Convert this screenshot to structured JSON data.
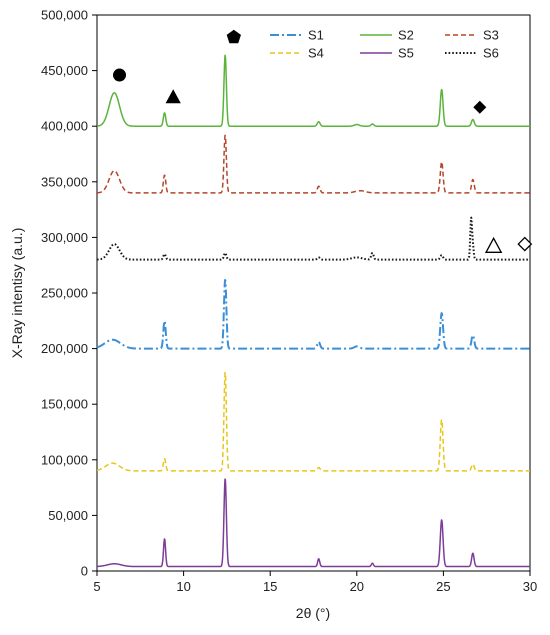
{
  "chart_data": {
    "type": "line",
    "title": "",
    "xlabel": "2θ (°)",
    "ylabel": "X-Ray intentisy (a.u.)",
    "xlim": [
      5,
      30
    ],
    "ylim": [
      0,
      500000
    ],
    "x_ticks": [
      5,
      10,
      15,
      20,
      25,
      30
    ],
    "y_ticks": [
      0,
      50000,
      100000,
      150000,
      200000,
      250000,
      300000,
      350000,
      400000,
      450000,
      500000
    ],
    "x_tick_labels": [
      "5",
      "10",
      "15",
      "20",
      "25",
      "30"
    ],
    "y_tick_labels": [
      "0",
      "50,000",
      "100,000",
      "150,000",
      "200,000",
      "250,000",
      "300,000",
      "350,000",
      "400,000",
      "450,000",
      "500,000"
    ],
    "grid": false,
    "legend_position": "top-right",
    "series": [
      {
        "name": "S1",
        "color": "#3a8fd8",
        "dash": "dashdot",
        "baseline": 200000,
        "peaks": [
          [
            5.9,
            8000,
            0.45
          ],
          [
            8.9,
            25000,
            0.07
          ],
          [
            12.4,
            62000,
            0.07
          ],
          [
            17.8,
            6000,
            0.08
          ],
          [
            20.0,
            2000,
            0.15
          ],
          [
            24.9,
            32000,
            0.08
          ],
          [
            26.7,
            12000,
            0.08
          ]
        ]
      },
      {
        "name": "S2",
        "color": "#5ab43c",
        "dash": "solid",
        "baseline": 400000,
        "peaks": [
          [
            6.0,
            30000,
            0.3
          ],
          [
            8.9,
            12000,
            0.07
          ],
          [
            12.4,
            64000,
            0.07
          ],
          [
            17.8,
            4000,
            0.08
          ],
          [
            20.0,
            1500,
            0.15
          ],
          [
            20.9,
            2000,
            0.08
          ],
          [
            24.9,
            33000,
            0.08
          ],
          [
            26.7,
            6000,
            0.08
          ]
        ]
      },
      {
        "name": "S3",
        "color": "#b5452a",
        "dash": "dashed",
        "baseline": 340000,
        "peaks": [
          [
            6.0,
            20000,
            0.3
          ],
          [
            8.9,
            16000,
            0.07
          ],
          [
            12.4,
            52000,
            0.07
          ],
          [
            17.8,
            6000,
            0.08
          ],
          [
            20.2,
            2000,
            0.3
          ],
          [
            24.9,
            28000,
            0.08
          ],
          [
            26.7,
            12000,
            0.08
          ]
        ]
      },
      {
        "name": "S4",
        "color": "#e6c619",
        "dash": "dashed",
        "baseline": 90000,
        "peaks": [
          [
            5.9,
            7000,
            0.4
          ],
          [
            8.9,
            11000,
            0.07
          ],
          [
            12.4,
            89000,
            0.07
          ],
          [
            17.8,
            3000,
            0.08
          ],
          [
            24.9,
            46000,
            0.08
          ],
          [
            26.7,
            6000,
            0.08
          ]
        ]
      },
      {
        "name": "S5",
        "color": "#7d3c98",
        "dash": "solid",
        "baseline": 4000,
        "peaks": [
          [
            6.0,
            2500,
            0.4
          ],
          [
            8.9,
            25000,
            0.06
          ],
          [
            12.4,
            79000,
            0.07
          ],
          [
            17.8,
            7000,
            0.06
          ],
          [
            20.9,
            3000,
            0.06
          ],
          [
            24.9,
            42000,
            0.08
          ],
          [
            26.7,
            12000,
            0.07
          ]
        ]
      },
      {
        "name": "S6",
        "color": "#1a1a1a",
        "dash": "dotted",
        "baseline": 280000,
        "peaks": [
          [
            6.0,
            14000,
            0.3
          ],
          [
            8.9,
            5000,
            0.07
          ],
          [
            12.4,
            6000,
            0.07
          ],
          [
            17.8,
            2000,
            0.08
          ],
          [
            20.0,
            2000,
            0.3
          ],
          [
            20.9,
            6000,
            0.07
          ],
          [
            24.9,
            4000,
            0.08
          ],
          [
            26.6,
            36000,
            0.05
          ],
          [
            26.7,
            12000,
            0.05
          ]
        ]
      }
    ],
    "markers": [
      {
        "shape": "circle",
        "x": 6.3,
        "y": 446000
      },
      {
        "shape": "triangle",
        "x": 9.4,
        "y": 426000
      },
      {
        "shape": "pentagon",
        "x": 12.9,
        "y": 480000
      },
      {
        "shape": "diamond",
        "x": 27.1,
        "y": 417000
      },
      {
        "shape": "triangle-open",
        "x": 27.9,
        "y": 292000
      },
      {
        "shape": "diamond-open",
        "x": 29.7,
        "y": 294000
      }
    ]
  }
}
